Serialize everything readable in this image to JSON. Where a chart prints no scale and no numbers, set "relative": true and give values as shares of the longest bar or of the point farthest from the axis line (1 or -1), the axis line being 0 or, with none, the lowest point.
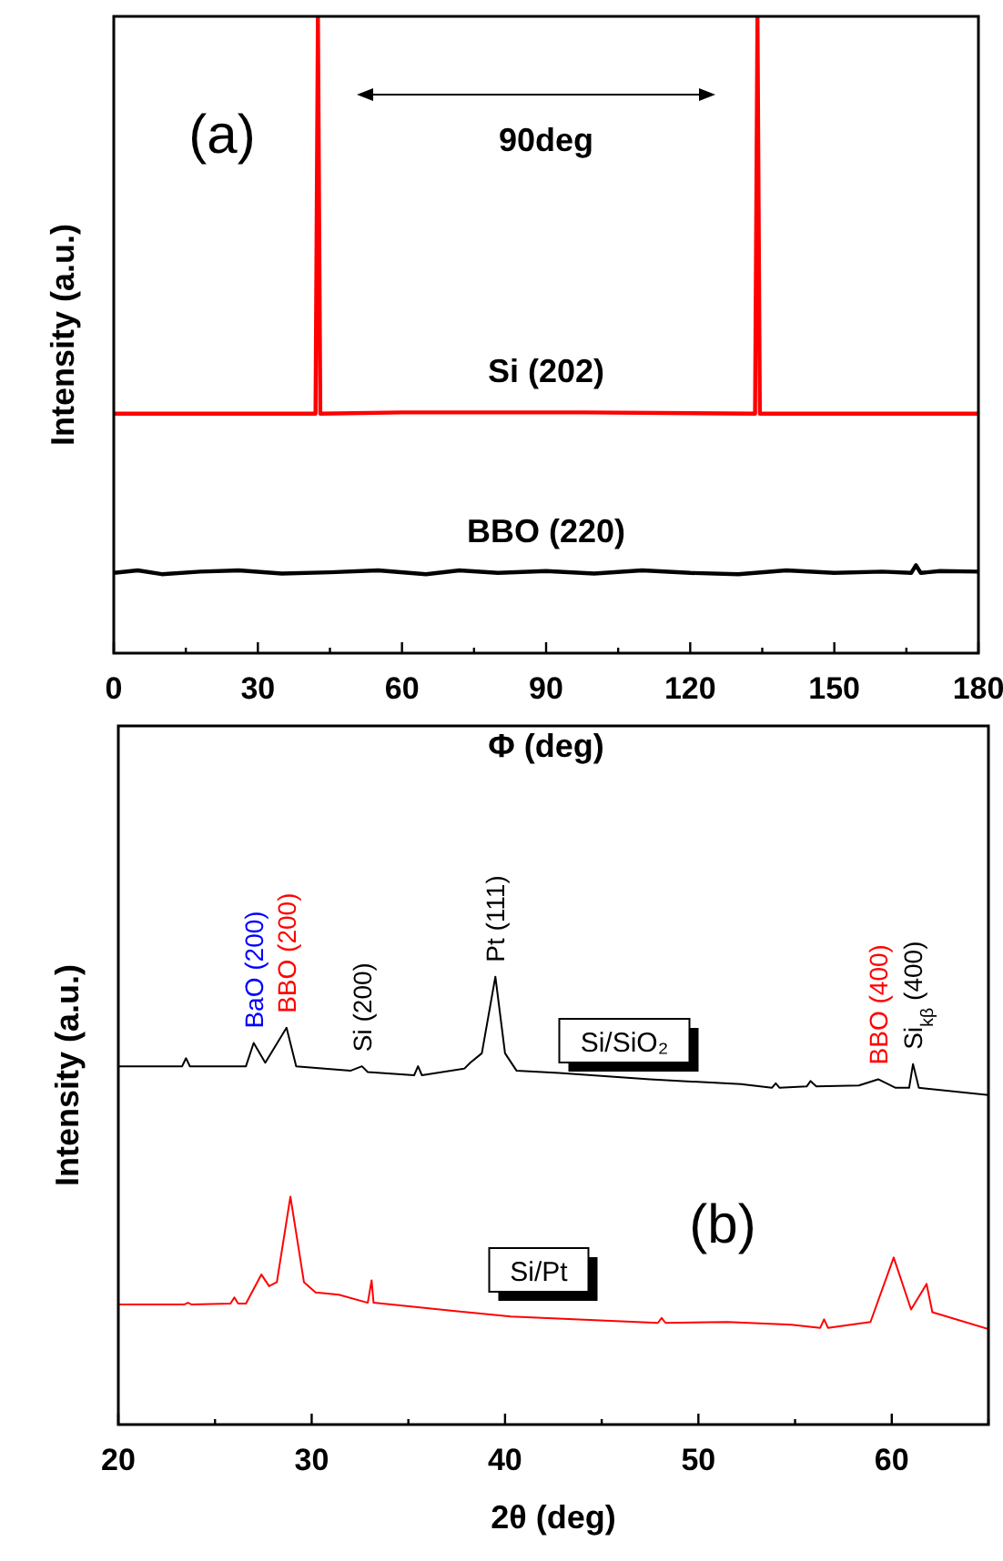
{
  "chart_data": [
    {
      "type": "line",
      "relative": true,
      "xlabel": "Φ (deg)",
      "ylabel": "Intensity (a.u.)",
      "xlim": [
        0,
        180
      ],
      "xticks": [
        0,
        {
          "value": 15,
          "label": null
        },
        30,
        {
          "value": 45,
          "label": null
        },
        60,
        {
          "value": 75,
          "label": null
        },
        90,
        {
          "value": 105,
          "label": null
        },
        120,
        {
          "value": 135,
          "label": null
        },
        150,
        {
          "value": 165,
          "label": null
        },
        180
      ],
      "annotations": [
        "(a)",
        "90deg"
      ],
      "series": [
        {
          "name": "Si (202)",
          "color": "#ff0000",
          "x": [
            0,
            20,
            42,
            42.5,
            43,
            60,
            98,
            133.5,
            134,
            134.5,
            160,
            180
          ],
          "values": [
            0.376,
            0.376,
            0.376,
            1,
            0.376,
            0.378,
            0.378,
            0.376,
            1,
            0.376,
            0.376,
            0.376
          ]
        },
        {
          "name": "BBO (220)",
          "color": "#000000",
          "x": [
            0,
            5,
            10,
            18,
            26,
            35,
            45,
            55,
            65,
            72,
            80,
            90,
            100,
            110,
            120,
            130,
            140,
            150,
            160,
            166,
            167,
            168,
            172,
            180
          ],
          "values": [
            0.126,
            0.13,
            0.124,
            0.128,
            0.13,
            0.125,
            0.127,
            0.13,
            0.124,
            0.13,
            0.126,
            0.129,
            0.125,
            0.13,
            0.126,
            0.124,
            0.13,
            0.126,
            0.128,
            0.126,
            0.138,
            0.126,
            0.129,
            0.128
          ]
        }
      ]
    },
    {
      "type": "line",
      "relative": true,
      "xlabel": "2θ (deg)",
      "ylabel": "Intensity (a.u.)",
      "xlim": [
        20,
        65
      ],
      "xticks": [
        20,
        {
          "value": 25,
          "label": null
        },
        30,
        {
          "value": 35,
          "label": null
        },
        40,
        {
          "value": 45,
          "label": null
        },
        50,
        {
          "value": 55,
          "label": null
        },
        60,
        {
          "value": 65,
          "label": null
        }
      ],
      "annotations": [
        "(b)",
        {
          "text": "BaO (200)",
          "x": 27.0,
          "y": 0.852
        },
        {
          "text": "BBO (200)",
          "x": 28.7,
          "y": 0.886
        },
        {
          "text": "Si (200)",
          "x": 32.6,
          "y": 0.8
        },
        {
          "text": "Pt (111)",
          "x": 39.5,
          "y": 1
        },
        {
          "text": "BBO (400)",
          "x": 59.3,
          "y": 0.771
        },
        {
          "text": "Si$_{kβ}$ (400)",
          "x": 61.1,
          "y": 0.805
        }
      ],
      "series": [
        {
          "name": "Si/SiO₂",
          "color": "#000000",
          "x": [
            20,
            23.3,
            23.5,
            23.7,
            26.6,
            27.0,
            27.6,
            28.7,
            29.2,
            32.0,
            32.6,
            32.9,
            35.3,
            35.5,
            35.7,
            37.9,
            38.2,
            38.8,
            39.5,
            40.0,
            40.6,
            42.8,
            47.5,
            52.2,
            53.8,
            54.0,
            54.2,
            55.6,
            55.8,
            56.1,
            58.3,
            59.3,
            60.2,
            60.9,
            61.1,
            61.4,
            65
          ],
          "values": [
            0.8,
            0.8,
            0.818,
            0.8,
            0.8,
            0.852,
            0.808,
            0.886,
            0.8,
            0.79,
            0.8,
            0.787,
            0.78,
            0.8,
            0.78,
            0.795,
            0.808,
            0.829,
            1,
            0.829,
            0.79,
            0.785,
            0.771,
            0.76,
            0.752,
            0.762,
            0.752,
            0.755,
            0.767,
            0.755,
            0.757,
            0.771,
            0.752,
            0.752,
            0.805,
            0.752,
            0.736
          ]
        },
        {
          "name": "Si/Pt",
          "color": "#ff0000",
          "x": [
            20,
            23.4,
            23.6,
            23.8,
            25.8,
            26.0,
            26.2,
            26.6,
            27.4,
            27.8,
            28.2,
            28.9,
            29.6,
            30.2,
            31.4,
            32.9,
            33.1,
            33.2,
            40.3,
            47.9,
            48.1,
            48.3,
            51.5,
            54.8,
            56.3,
            56.5,
            56.7,
            58.9,
            60.1,
            61.0,
            61.8,
            62.1,
            65
          ],
          "values": [
            0.268,
            0.268,
            0.272,
            0.268,
            0.27,
            0.284,
            0.27,
            0.27,
            0.335,
            0.309,
            0.318,
            0.509,
            0.318,
            0.295,
            0.29,
            0.272,
            0.322,
            0.272,
            0.241,
            0.227,
            0.238,
            0.227,
            0.229,
            0.223,
            0.216,
            0.235,
            0.216,
            0.229,
            0.373,
            0.257,
            0.314,
            0.251,
            0.213
          ]
        }
      ]
    }
  ]
}
